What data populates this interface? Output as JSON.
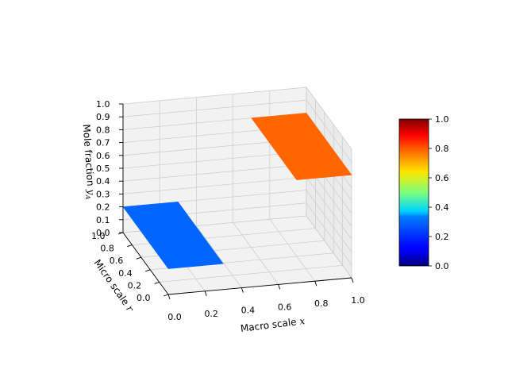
{
  "chart_data": {
    "type": "surface3d",
    "xlabel_text": "Macro scale ",
    "xlabel_var": "x",
    "ylabel_text": "Micro scale ",
    "ylabel_var": "r",
    "zlabel_text": "Mole fraction ",
    "zlabel_var": "y",
    "zlabel_sub": "A",
    "xticks": [
      "0.0",
      "0.2",
      "0.4",
      "0.6",
      "0.8",
      "1.0"
    ],
    "yticks": [
      "0.0",
      "0.2",
      "0.4",
      "0.6",
      "0.8",
      "1.0"
    ],
    "zticks": [
      "0.0",
      "0.1",
      "0.2",
      "0.3",
      "0.4",
      "0.5",
      "0.6",
      "0.7",
      "0.8",
      "0.9",
      "1.0"
    ],
    "xlim": [
      0,
      1
    ],
    "ylim": [
      0,
      1
    ],
    "zlim": [
      0,
      1
    ],
    "grid": true,
    "colormap": "jet",
    "surfaces": [
      {
        "x_range": [
          0.0,
          0.3
        ],
        "y_range": [
          0,
          1
        ],
        "z": 0.2,
        "color_value": 0.2,
        "color": "#0066ff"
      },
      {
        "x_range": [
          0.7,
          1.0
        ],
        "y_range": [
          0,
          1
        ],
        "z": 0.8,
        "color_value": 0.8,
        "color": "#ff6600"
      }
    ],
    "colorbar": {
      "ticks": [
        "0.0",
        "0.2",
        "0.4",
        "0.6",
        "0.8",
        "1.0"
      ],
      "range": [
        0,
        1
      ]
    }
  }
}
